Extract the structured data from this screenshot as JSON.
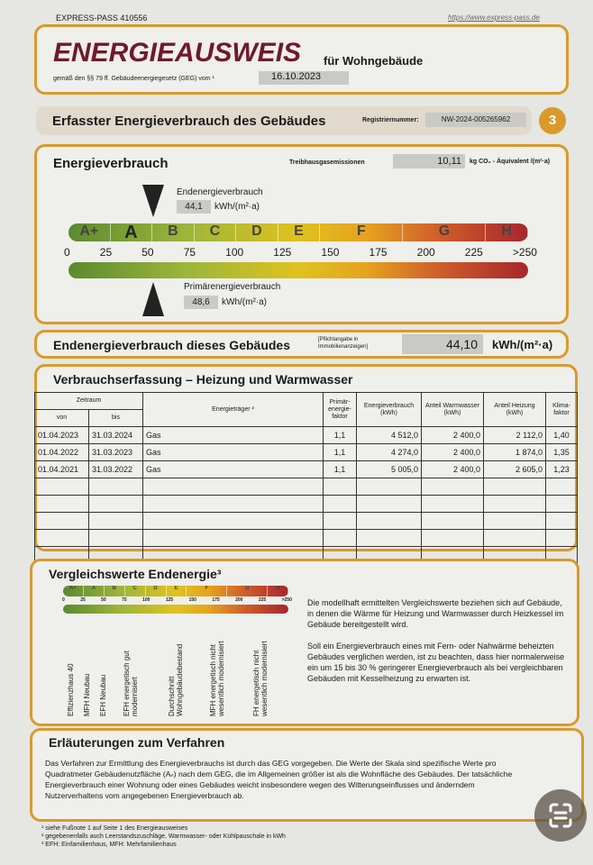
{
  "top": {
    "pass_id": "EXPRESS-PASS 410556",
    "url": "https://www.express-pass.de"
  },
  "title": {
    "main": "ENERGIEAUSWEIS",
    "sub": "für Wohngebäude",
    "law": "gemäß den §§ 79 ff. Gebäudeenergiegesetz (GEG) vom ¹",
    "date": "16.10.2023"
  },
  "section": {
    "title": "Erfasster Energieverbrauch des Gebäudes",
    "reg_label": "Registriernummer:",
    "reg_number": "NW-2024-005265962",
    "page": "3"
  },
  "energy": {
    "title": "Energieverbrauch",
    "ghg_label": "Treibhausgasemissionen",
    "ghg_value": "10,11",
    "ghg_unit": "kg CO₂ - Äquivalent /(m²·a)",
    "end_label": "Endenergieverbrauch",
    "end_value": "44,1",
    "end_unit": "kWh/(m²·a)",
    "prim_label": "Primärenergieverbrauch",
    "prim_value": "48,6",
    "prim_unit": "kWh/(m²·a)",
    "classes": [
      "A+",
      "A",
      "B",
      "C",
      "D",
      "E",
      "F",
      "G",
      "H"
    ],
    "ticks": [
      "0",
      "25",
      "50",
      "75",
      "100",
      "125",
      "150",
      "175",
      "200",
      "225",
      ">250"
    ],
    "end_numeric": 44.1,
    "prim_numeric": 48.6
  },
  "building": {
    "label": "Endenergieverbrauch dieses Gebäudes",
    "note": "[Pflichtangabe in Immobilienanzeigen]",
    "value": "44,10",
    "unit": "kWh/(m²·a)"
  },
  "table": {
    "title": "Verbrauchserfassung – Heizung und Warmwasser",
    "headers": {
      "zeitraum": "Zeitraum",
      "von": "von",
      "bis": "bis",
      "traeger": "Energieträger ²",
      "pef": "Primär-energie-faktor",
      "verbrauch": "Energieverbrauch (kWh)",
      "ww": "Anteil Warmwasser (kWh)",
      "heiz": "Anteil Heizung (kWh)",
      "klima": "Klima-faktor"
    },
    "rows": [
      [
        "01.04.2023",
        "31.03.2024",
        "Gas",
        "1,1",
        "4 512,0",
        "2 400,0",
        "2 112,0",
        "1,40"
      ],
      [
        "01.04.2022",
        "31.03.2023",
        "Gas",
        "1,1",
        "4 274,0",
        "2 400,0",
        "1 874,0",
        "1,35"
      ],
      [
        "01.04.2021",
        "31.03.2022",
        "Gas",
        "1,1",
        "5 005,0",
        "2 400,0",
        "2 605,0",
        "1,23"
      ]
    ]
  },
  "compare": {
    "title": "Vergleichswerte Endenergie³",
    "labels": [
      "Effizienzhaus 40",
      "MFH Neubau",
      "EFH Neubau",
      "EFH energetisch gut modernisiert",
      "Durchschnitt Wohngebäudebestand",
      "MFH energetisch nicht wesentlich modernisiert",
      "FH energetisch nicht wesentlich modernisiert"
    ],
    "text1": "Die modellhaft ermittelten Vergleichswerte beziehen sich auf Gebäude, in denen die Wärme für Heizung und Warmwasser durch Heizkessel im Gebäude bereitgestellt wird.",
    "text2": "Soll ein Energieverbrauch eines mit Fern- oder Nahwärme beheizten Gebäudes verglichen werden, ist zu beachten, dass hier normalerweise ein um 15 bis 30 % geringerer Energieverbrauch als bei vergleichbaren Gebäuden mit Kesselheizung zu erwarten ist."
  },
  "explain": {
    "title": "Erläuterungen zum Verfahren",
    "text": "Das Verfahren zur Ermittlung des Energieverbrauchs ist durch das GEG vorgegeben. Die Werte der Skala sind spezifische Werte pro Quadratmeter Gebäudenutzfläche (Aₙ) nach dem GEG, die im Allgemeinen größer ist als die Wohnfläche des Gebäudes. Der tatsächliche Energieverbrauch einer Wohnung oder eines Gebäudes weicht insbesondere wegen des Witterungseinflusses und änderndem Nutzerverhaltens vom angegebenen Energieverbrauch ab."
  },
  "footnotes": [
    "¹ siehe Fußnote 1 auf Seite 1 des Energieausweises",
    "² gegebenenfalls auch Leerstandszuschläge, Warmwasser- oder Kühlpauschale in kWh",
    "³ EFH: Einfamilienhaus, MFH: Mehrfamilienhaus"
  ],
  "colors": {
    "accent": "#d99a2b",
    "title": "#6e1a2a"
  }
}
